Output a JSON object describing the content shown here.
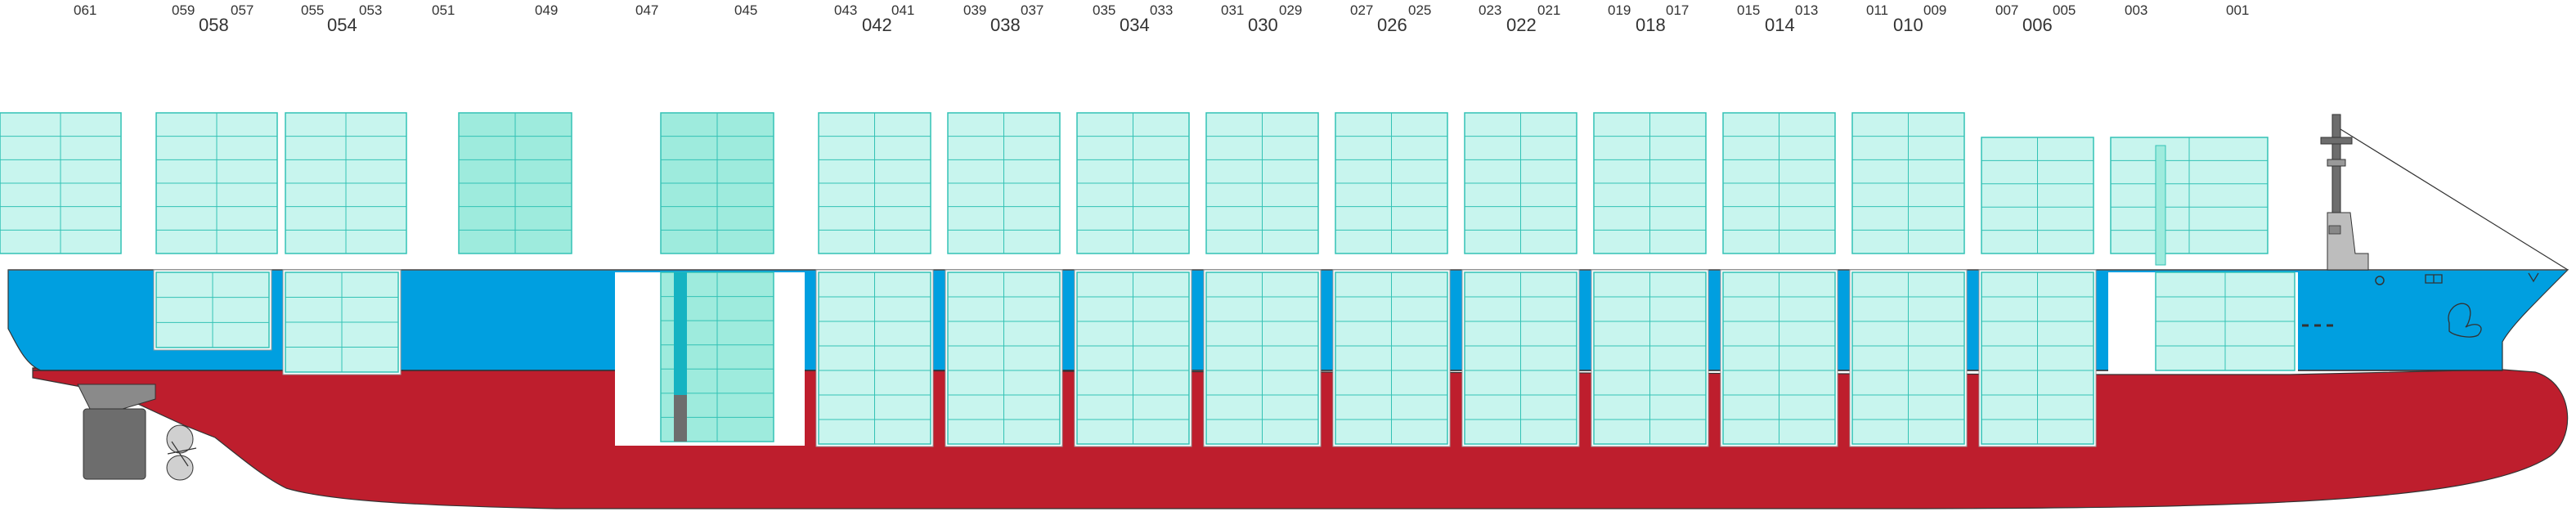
{
  "diagram": {
    "colors": {
      "background": "#ffffff",
      "hull_upper": "#009fe0",
      "hull_lower": "#be1e2d",
      "container_fill": "#c8f5ee",
      "container_fill_dark": "#9eebdd",
      "container_stroke": "#33c2b5",
      "hatch_dark": "#15b3c2",
      "rudder": "#6d6d6d",
      "deck_white": "#ffffff"
    },
    "bays": [
      {
        "odd_a": "061",
        "odd_b": "",
        "even": ""
      },
      {
        "odd_a": "059",
        "odd_b": "057",
        "even": "058"
      },
      {
        "odd_a": "055",
        "odd_b": "053",
        "even": "054"
      },
      {
        "odd_a": "051",
        "odd_b": "",
        "even": ""
      },
      {
        "odd_a": "049",
        "odd_b": "",
        "even": ""
      },
      {
        "odd_a": "047",
        "odd_b": "",
        "even": ""
      },
      {
        "odd_a": "045",
        "odd_b": "",
        "even": ""
      },
      {
        "odd_a": "043",
        "odd_b": "041",
        "even": "042"
      },
      {
        "odd_a": "039",
        "odd_b": "037",
        "even": "038"
      },
      {
        "odd_a": "035",
        "odd_b": "033",
        "even": "034"
      },
      {
        "odd_a": "031",
        "odd_b": "029",
        "even": "030"
      },
      {
        "odd_a": "027",
        "odd_b": "025",
        "even": "026"
      },
      {
        "odd_a": "023",
        "odd_b": "021",
        "even": "022"
      },
      {
        "odd_a": "019",
        "odd_b": "017",
        "even": "018"
      },
      {
        "odd_a": "015",
        "odd_b": "013",
        "even": "014"
      },
      {
        "odd_a": "011",
        "odd_b": "009",
        "even": "010"
      },
      {
        "odd_a": "007",
        "odd_b": "005",
        "even": "006"
      },
      {
        "odd_a": "003",
        "odd_b": "",
        "even": ""
      },
      {
        "odd_a": "001",
        "odd_b": "",
        "even": ""
      }
    ]
  }
}
